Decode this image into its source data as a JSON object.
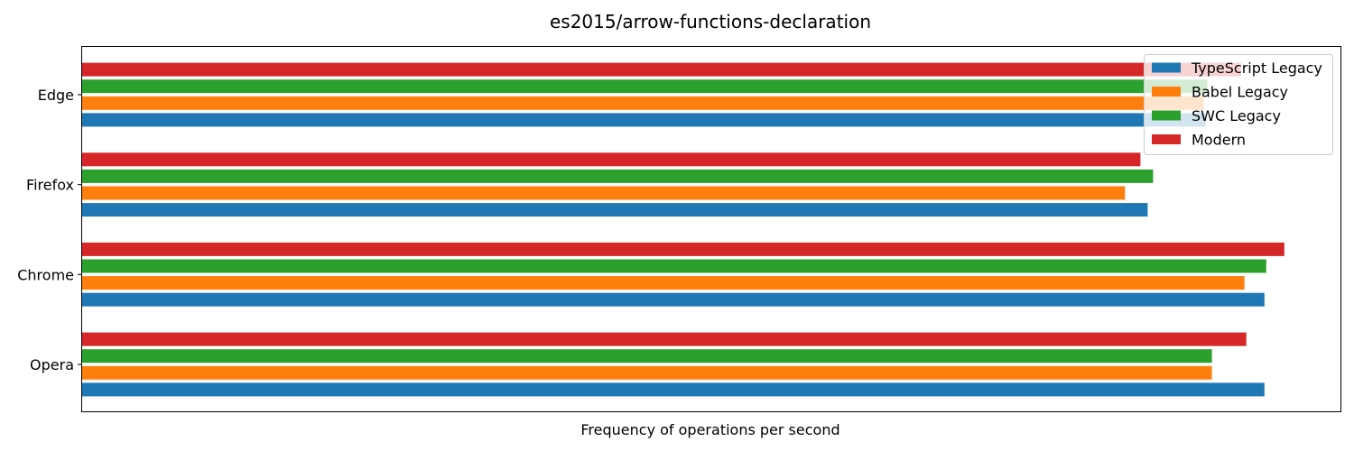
{
  "chart_data": {
    "type": "bar",
    "orientation": "horizontal",
    "title": "es2015/arrow-functions-declaration",
    "xlabel": "Frequency of operations per second",
    "ylabel": "",
    "categories": [
      "Opera",
      "Chrome",
      "Firefox",
      "Edge"
    ],
    "series": [
      {
        "name": "TypeScript Legacy",
        "color": "#1f77b4",
        "values": [
          1306,
          1306,
          1177,
          1241
        ]
      },
      {
        "name": "Babel Legacy",
        "color": "#ff7f0e",
        "values": [
          1248,
          1284,
          1152,
          1239
        ]
      },
      {
        "name": "SWC Legacy",
        "color": "#2ca02c",
        "values": [
          1248,
          1308,
          1183,
          1243
        ]
      },
      {
        "name": "Modern",
        "color": "#d62728",
        "values": [
          1286,
          1328,
          1169,
          1280
        ]
      }
    ],
    "xlim": [
      0,
      1390
    ],
    "xticks_visible": false,
    "grid": false,
    "legend_position": "top-right"
  }
}
